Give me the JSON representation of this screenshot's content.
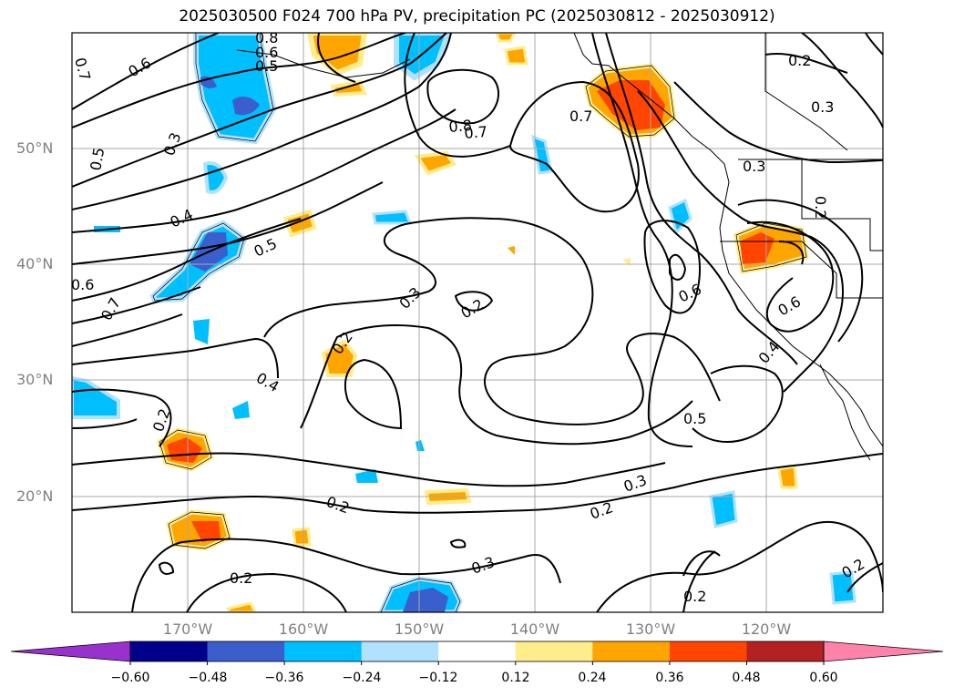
{
  "title": "2025030500 F024 700 hPa PV, precipitation PC (2025030812 - 2025030912)",
  "map": {
    "lat_labels": [
      "50°N",
      "40°N",
      "30°N",
      "20°N"
    ],
    "lon_labels": [
      "170°W",
      "160°W",
      "150°W",
      "140°W",
      "130°W",
      "120°W"
    ],
    "contour_labels": [
      "0.2",
      "0.3",
      "0.4",
      "0.5",
      "0.6",
      "0.7",
      "0.8"
    ]
  },
  "colorbar": {
    "ticks": [
      "−0.60",
      "−0.48",
      "−0.36",
      "−0.24",
      "−0.12",
      "0.12",
      "0.24",
      "0.36",
      "0.48",
      "0.60"
    ],
    "colors": [
      "#9932cc",
      "#00008b",
      "#3a5fcd",
      "#00bfff",
      "#b0e2ff",
      "#ffffff",
      "#ffec8b",
      "#ffa500",
      "#ff4500",
      "#b22222",
      "#ff82ab"
    ]
  }
}
